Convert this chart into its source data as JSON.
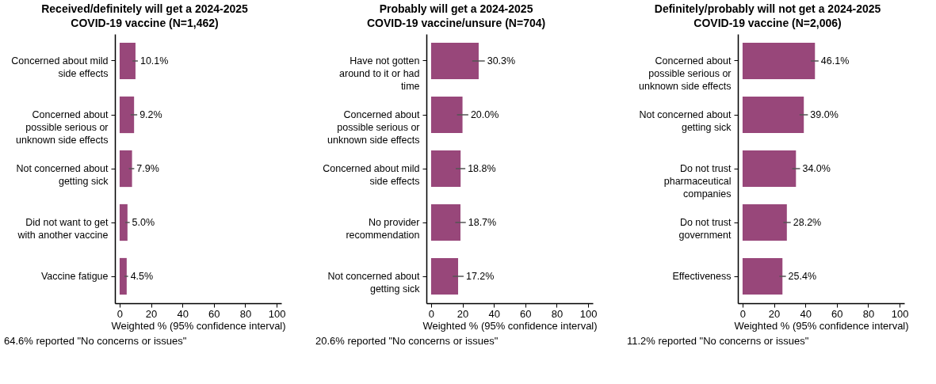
{
  "chart_data": [
    {
      "type": "bar",
      "orientation": "horizontal",
      "title": "Received/definitely will get a 2024-2025\nCOVID-19 vaccine (N=1,462)",
      "categories": [
        "Concerned about mild\nside effects",
        "Concerned about\npossible serious or\nunknown side effects",
        "Not concerned about\ngetting sick",
        "Did not want to get\nwith another vaccine",
        "Vaccine fatigue"
      ],
      "values": [
        10.1,
        9.2,
        7.9,
        5.0,
        4.5
      ],
      "errors": [
        [
          8.2,
          11.6
        ],
        [
          7.0,
          11.2
        ],
        [
          5.9,
          9.3
        ],
        [
          3.6,
          6.4
        ],
        [
          3.1,
          5.4
        ]
      ],
      "value_labels": [
        "10.1%",
        "9.2%",
        "7.9%",
        "5.0%",
        "4.5%"
      ],
      "color": "#98477a",
      "xlim": [
        -3,
        103
      ],
      "xticks": [
        0,
        20,
        40,
        60,
        80,
        100
      ],
      "xlabel": "Weighted % (95% confidence interval)",
      "grid": false,
      "annotations": [
        "64.6% reported \"No concerns or issues\""
      ]
    },
    {
      "type": "bar",
      "orientation": "horizontal",
      "title": "Probably will get a 2024-2025\nCOVID-19 vaccine/unsure (N=704)",
      "categories": [
        "Have not gotten\naround to it or had\ntime",
        "Concerned about\npossible serious or\nunknown side effects",
        "Concerned about mild\nside effects",
        "No provider\nrecommendation",
        "Not concerned about\ngetting sick"
      ],
      "values": [
        30.3,
        20.0,
        18.8,
        18.7,
        17.2
      ],
      "errors": [
        [
          26.2,
          34.2
        ],
        [
          16.5,
          23.7
        ],
        [
          15.7,
          21.8
        ],
        [
          15.4,
          22.1
        ],
        [
          13.8,
          20.7
        ]
      ],
      "value_labels": [
        "30.3%",
        "20.0%",
        "18.8%",
        "18.7%",
        "17.2%"
      ],
      "color": "#98477a",
      "xlim": [
        -3,
        103
      ],
      "xticks": [
        0,
        20,
        40,
        60,
        80,
        100
      ],
      "xlabel": "Weighted % (95% confidence interval)",
      "grid": false,
      "annotations": [
        "20.6% reported \"No concerns or issues\""
      ]
    },
    {
      "type": "bar",
      "orientation": "horizontal",
      "title": "Definitely/probably will not get a 2024-2025\nCOVID-19 vaccine (N=2,006)",
      "categories": [
        "Concerned about\npossible serious or\nunknown side effects",
        "Not concerned about\ngetting sick",
        "Do not trust\npharmaceutical\ncompanies",
        "Do not trust\ngovernment",
        "Effectiveness"
      ],
      "values": [
        46.1,
        39.0,
        34.0,
        28.2,
        25.4
      ],
      "errors": [
        [
          43.5,
          48.4
        ],
        [
          36.3,
          41.6
        ],
        [
          31.6,
          36.6
        ],
        [
          26.0,
          30.7
        ],
        [
          23.5,
          27.6
        ]
      ],
      "value_labels": [
        "46.1%",
        "39.0%",
        "34.0%",
        "28.2%",
        "25.4%"
      ],
      "color": "#98477a",
      "xlim": [
        -3,
        103
      ],
      "xticks": [
        0,
        20,
        40,
        60,
        80,
        100
      ],
      "xlabel": "Weighted % (95% confidence interval)",
      "grid": false,
      "annotations": [
        "11.2% reported \"No concerns or issues\""
      ]
    }
  ]
}
